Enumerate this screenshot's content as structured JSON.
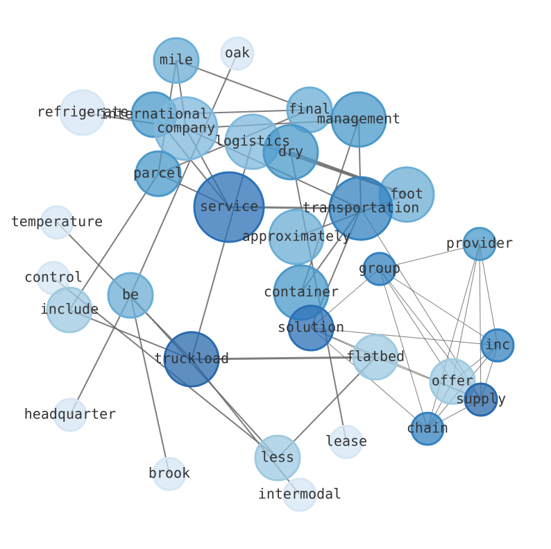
{
  "nodes": [
    {
      "id": "mile",
      "label": "mile",
      "color": "#6baed6"
    },
    {
      "id": "oak",
      "label": "oak",
      "color": "#d6e6f4"
    },
    {
      "id": "refrigerate",
      "label": "refrigerate",
      "color": "#d6e6f4"
    },
    {
      "id": "international",
      "label": "international",
      "color": "#4a98c9"
    },
    {
      "id": "company",
      "label": "company",
      "color": "#7fb8dd"
    },
    {
      "id": "final",
      "label": "final",
      "color": "#6baed6"
    },
    {
      "id": "management",
      "label": "management",
      "color": "#4a98c9"
    },
    {
      "id": "logistics",
      "label": "logistics",
      "color": "#7fb8dd"
    },
    {
      "id": "dry",
      "label": "dry",
      "color": "#4a98c9"
    },
    {
      "id": "parcel",
      "label": "parcel",
      "color": "#4a98c9"
    },
    {
      "id": "service",
      "label": "service",
      "color": "#2b70b5"
    },
    {
      "id": "foot",
      "label": "foot",
      "color": "#6baed6"
    },
    {
      "id": "transportation",
      "label": "transportation",
      "color": "#3381bf"
    },
    {
      "id": "approximately",
      "label": "approximately",
      "color": "#6baed6"
    },
    {
      "id": "temperature",
      "label": "temperature",
      "color": "#d6e6f4"
    },
    {
      "id": "provider",
      "label": "provider",
      "color": "#4a98c9"
    },
    {
      "id": "group",
      "label": "group",
      "color": "#3381bf"
    },
    {
      "id": "control",
      "label": "control",
      "color": "#d6e6f4"
    },
    {
      "id": "be",
      "label": "be",
      "color": "#6baed6"
    },
    {
      "id": "include",
      "label": "include",
      "color": "#9ecae1"
    },
    {
      "id": "container",
      "label": "container",
      "color": "#4a98c9"
    },
    {
      "id": "solution",
      "label": "solution",
      "color": "#2b70b5"
    },
    {
      "id": "inc",
      "label": "inc",
      "color": "#3381bf"
    },
    {
      "id": "truckload",
      "label": "truckload",
      "color": "#2a68ac"
    },
    {
      "id": "flatbed",
      "label": "flatbed",
      "color": "#9ecae1"
    },
    {
      "id": "offer",
      "label": "offer",
      "color": "#9ecae1"
    },
    {
      "id": "supply",
      "label": "supply",
      "color": "#2a68ac"
    },
    {
      "id": "headquarter",
      "label": "headquarter",
      "color": "#d6e6f4"
    },
    {
      "id": "chain",
      "label": "chain",
      "color": "#3381bf"
    },
    {
      "id": "lease",
      "label": "lease",
      "color": "#d6e6f4"
    },
    {
      "id": "less",
      "label": "less",
      "color": "#9ecae1"
    },
    {
      "id": "brook",
      "label": "brook",
      "color": "#d6e6f4"
    },
    {
      "id": "intermodal",
      "label": "intermodal",
      "color": "#d6e6f4"
    }
  ],
  "edges": [
    [
      "mile",
      "final",
      2
    ],
    [
      "mile",
      "parcel",
      2
    ],
    [
      "mile",
      "company",
      2
    ],
    [
      "oak",
      "be",
      2
    ],
    [
      "refrigerate",
      "company",
      2
    ],
    [
      "international",
      "final",
      2
    ],
    [
      "international",
      "service",
      2
    ],
    [
      "company",
      "management",
      2
    ],
    [
      "company",
      "service",
      2
    ],
    [
      "company",
      "transportation",
      2
    ],
    [
      "parcel",
      "service",
      2
    ],
    [
      "parcel",
      "final",
      2
    ],
    [
      "parcel",
      "include",
      2
    ],
    [
      "logistics",
      "truckload",
      2
    ],
    [
      "logistics",
      "foot",
      3
    ],
    [
      "dry",
      "foot",
      3
    ],
    [
      "dry",
      "lease",
      2
    ],
    [
      "management",
      "transportation",
      2
    ],
    [
      "management",
      "container",
      2
    ],
    [
      "service",
      "transportation",
      3
    ],
    [
      "approximately",
      "foot",
      2
    ],
    [
      "transportation",
      "solution",
      2
    ],
    [
      "transportation",
      "container",
      2
    ],
    [
      "transportation",
      "supply",
      1
    ],
    [
      "group",
      "provider",
      1
    ],
    [
      "group",
      "solution",
      1
    ],
    [
      "group",
      "chain",
      1
    ],
    [
      "group",
      "inc",
      1
    ],
    [
      "group",
      "supply",
      1
    ],
    [
      "group",
      "offer",
      1
    ],
    [
      "provider",
      "offer",
      1
    ],
    [
      "provider",
      "supply",
      1
    ],
    [
      "provider",
      "inc",
      1
    ],
    [
      "provider",
      "chain",
      1
    ],
    [
      "inc",
      "solution",
      1
    ],
    [
      "inc",
      "offer",
      1
    ],
    [
      "inc",
      "chain",
      1
    ],
    [
      "inc",
      "supply",
      1
    ],
    [
      "solution",
      "flatbed",
      1
    ],
    [
      "solution",
      "chain",
      1
    ],
    [
      "solution",
      "supply",
      1
    ],
    [
      "flatbed",
      "truckload",
      3
    ],
    [
      "flatbed",
      "less",
      2
    ],
    [
      "flatbed",
      "supply",
      1
    ],
    [
      "offer",
      "chain",
      1
    ],
    [
      "supply",
      "chain",
      1
    ],
    [
      "temperature",
      "truckload",
      2
    ],
    [
      "control",
      "less",
      2
    ],
    [
      "include",
      "truckload",
      2
    ],
    [
      "be",
      "less",
      2
    ],
    [
      "be",
      "brook",
      2
    ],
    [
      "be",
      "headquarter",
      2
    ],
    [
      "truckload",
      "intermodal",
      2
    ]
  ]
}
